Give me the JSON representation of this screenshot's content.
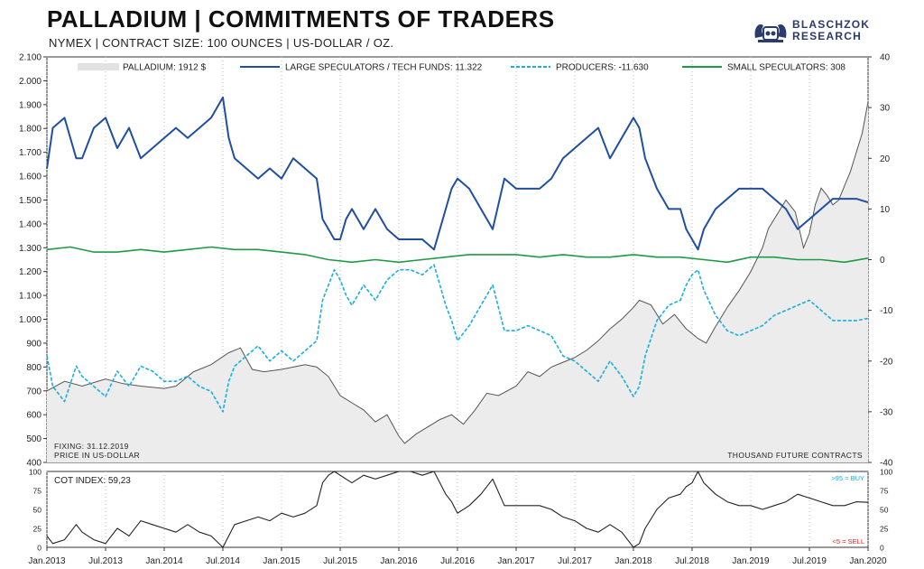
{
  "header": {
    "title": "PALLADIUM | COMMITMENTS OF TRADERS",
    "subtitle": "NYMEX | CONTRACT SIZE: 100 OUNCES | US-DOLLAR / OZ.",
    "logo_line1": "BLASCHZOK",
    "logo_line2": "RESEARCH",
    "logo_color": "#2a3b6e"
  },
  "chart_data": [
    {
      "type": "line",
      "left_axis": {
        "ylim": [
          400,
          2100
        ],
        "ticks": [
          400,
          500,
          600,
          700,
          800,
          900,
          1000,
          1100,
          1200,
          1300,
          1400,
          1500,
          1600,
          1700,
          1800,
          1900,
          2000,
          2100
        ],
        "tick_labels": [
          "400",
          "500",
          "600",
          "700",
          "800",
          "900",
          "1.000",
          "1.100",
          "1.200",
          "1.300",
          "1.400",
          "1.500",
          "1.600",
          "1.700",
          "1.800",
          "1.900",
          "2.000",
          "2.100"
        ]
      },
      "right_axis": {
        "ylim": [
          -40,
          40
        ],
        "ticks": [
          -40,
          -30,
          -20,
          -10,
          0,
          10,
          20,
          30,
          40
        ],
        "tick_labels": [
          "-40",
          "-30",
          "-20",
          "-10",
          "0",
          "10",
          "20",
          "30",
          "40"
        ]
      },
      "x_axis": {
        "ticks": [
          2013.0,
          2013.5,
          2014.0,
          2014.5,
          2015.0,
          2015.5,
          2016.0,
          2016.5,
          2017.0,
          2017.5,
          2018.0,
          2018.5,
          2019.0,
          2019.5,
          2020.0
        ],
        "tick_labels": [
          "Jan.2013",
          "Jul.2013",
          "Jan.2014",
          "Jul.2014",
          "Jan.2015",
          "Jul.2015",
          "Jan.2016",
          "Jul.2016",
          "Jan.2017",
          "Jul.2017",
          "Jan.2018",
          "Jul.2018",
          "Jan.2019",
          "Jul.2019",
          "Jan.2020"
        ]
      },
      "annotations": {
        "fixing": "FIXING: 31.12.2019",
        "price_note": "PRICE IN US-DOLLAR",
        "units": "THOUSAND FUTURE CONTRACTS"
      },
      "legend": [
        "PALLADIUM: 1912 $",
        "LARGE SPECULATORS / TECH FUNDS: 11.322",
        "PRODUCERS: -11.630",
        "SMALL SPECULATORS: 308"
      ],
      "legend_placement": "top",
      "series": [
        {
          "name": "PALLADIUM: 1912 $",
          "axis": "left",
          "style": "area",
          "color": "#555555",
          "fill": "#ececec",
          "x": [
            2013.0,
            2013.15,
            2013.3,
            2013.5,
            2013.65,
            2013.8,
            2014.0,
            2014.1,
            2014.25,
            2014.4,
            2014.55,
            2014.65,
            2014.75,
            2014.85,
            2015.0,
            2015.1,
            2015.2,
            2015.3,
            2015.4,
            2015.5,
            2015.6,
            2015.7,
            2015.8,
            2015.9,
            2016.0,
            2016.05,
            2016.15,
            2016.25,
            2016.35,
            2016.45,
            2016.55,
            2016.65,
            2016.75,
            2016.85,
            2017.0,
            2017.1,
            2017.2,
            2017.3,
            2017.4,
            2017.5,
            2017.6,
            2017.7,
            2017.8,
            2017.9,
            2018.0,
            2018.05,
            2018.15,
            2018.25,
            2018.35,
            2018.45,
            2018.55,
            2018.62,
            2018.7,
            2018.8,
            2018.9,
            2019.0,
            2019.05,
            2019.1,
            2019.15,
            2019.2,
            2019.3,
            2019.38,
            2019.45,
            2019.5,
            2019.55,
            2019.6,
            2019.65,
            2019.7,
            2019.75,
            2019.8,
            2019.85,
            2019.9,
            2019.95,
            2020.0
          ],
          "values": [
            700,
            740,
            720,
            750,
            730,
            720,
            710,
            720,
            780,
            810,
            860,
            880,
            790,
            780,
            790,
            800,
            810,
            800,
            760,
            680,
            650,
            620,
            570,
            600,
            510,
            480,
            520,
            550,
            580,
            600,
            560,
            620,
            690,
            680,
            720,
            780,
            760,
            800,
            820,
            840,
            870,
            910,
            960,
            1000,
            1050,
            1080,
            1060,
            980,
            1020,
            960,
            920,
            900,
            970,
            1050,
            1120,
            1200,
            1250,
            1300,
            1380,
            1420,
            1500,
            1450,
            1300,
            1360,
            1480,
            1550,
            1520,
            1480,
            1500,
            1560,
            1620,
            1700,
            1780,
            1912
          ]
        },
        {
          "name": "LARGE SPECULATORS / TECH FUNDS: 11.322",
          "axis": "right",
          "style": "line",
          "color": "#1f4ea3",
          "x": [
            2013.0,
            2013.05,
            2013.15,
            2013.25,
            2013.3,
            2013.4,
            2013.5,
            2013.6,
            2013.7,
            2013.8,
            2013.9,
            2014.0,
            2014.1,
            2014.2,
            2014.3,
            2014.4,
            2014.5,
            2014.55,
            2014.6,
            2014.7,
            2014.8,
            2014.9,
            2015.0,
            2015.1,
            2015.2,
            2015.3,
            2015.35,
            2015.4,
            2015.45,
            2015.5,
            2015.55,
            2015.6,
            2015.7,
            2015.8,
            2015.9,
            2016.0,
            2016.1,
            2016.2,
            2016.3,
            2016.4,
            2016.45,
            2016.5,
            2016.6,
            2016.7,
            2016.8,
            2016.9,
            2017.0,
            2017.1,
            2017.2,
            2017.3,
            2017.4,
            2017.5,
            2017.6,
            2017.7,
            2017.8,
            2017.9,
            2017.95,
            2018.0,
            2018.05,
            2018.1,
            2018.2,
            2018.3,
            2018.4,
            2018.45,
            2018.5,
            2018.55,
            2018.6,
            2018.7,
            2018.8,
            2018.9,
            2019.0,
            2019.1,
            2019.2,
            2019.3,
            2019.4,
            2019.5,
            2019.6,
            2019.7,
            2019.8,
            2019.9,
            2020.0
          ],
          "values": [
            18,
            26,
            28,
            20,
            20,
            26,
            28,
            22,
            26,
            20,
            22,
            24,
            26,
            24,
            26,
            28,
            32,
            24,
            20,
            18,
            16,
            18,
            16,
            20,
            18,
            16,
            8,
            6,
            4,
            4,
            8,
            10,
            6,
            10,
            6,
            4,
            4,
            4,
            2,
            10,
            14,
            16,
            14,
            10,
            6,
            16,
            14,
            14,
            14,
            16,
            20,
            22,
            24,
            26,
            20,
            24,
            26,
            28,
            26,
            20,
            14,
            10,
            10,
            6,
            4,
            2,
            6,
            10,
            12,
            14,
            14,
            14,
            12,
            10,
            6,
            8,
            10,
            12,
            12,
            12,
            11.3
          ]
        },
        {
          "name": "PRODUCERS: -11.630",
          "axis": "right",
          "style": "dashed",
          "color": "#1aaee0",
          "x": [
            2013.0,
            2013.05,
            2013.15,
            2013.25,
            2013.3,
            2013.4,
            2013.5,
            2013.6,
            2013.7,
            2013.8,
            2013.9,
            2014.0,
            2014.1,
            2014.2,
            2014.3,
            2014.4,
            2014.5,
            2014.55,
            2014.6,
            2014.7,
            2014.8,
            2014.9,
            2015.0,
            2015.1,
            2015.2,
            2015.3,
            2015.35,
            2015.4,
            2015.45,
            2015.5,
            2015.55,
            2015.6,
            2015.7,
            2015.8,
            2015.9,
            2016.0,
            2016.1,
            2016.2,
            2016.3,
            2016.4,
            2016.45,
            2016.5,
            2016.6,
            2016.7,
            2016.8,
            2016.9,
            2017.0,
            2017.1,
            2017.2,
            2017.3,
            2017.4,
            2017.5,
            2017.6,
            2017.7,
            2017.8,
            2017.9,
            2017.95,
            2018.0,
            2018.05,
            2018.1,
            2018.2,
            2018.3,
            2018.4,
            2018.45,
            2018.5,
            2018.55,
            2018.6,
            2018.7,
            2018.8,
            2018.9,
            2019.0,
            2019.1,
            2019.2,
            2019.3,
            2019.4,
            2019.5,
            2019.6,
            2019.7,
            2019.8,
            2019.9,
            2020.0
          ],
          "values": [
            -19,
            -25,
            -28,
            -21,
            -23,
            -25,
            -27,
            -22,
            -25,
            -21,
            -22,
            -24,
            -24,
            -23,
            -25,
            -26,
            -30,
            -24,
            -21,
            -19,
            -17,
            -20,
            -18,
            -20,
            -18,
            -16,
            -8,
            -5,
            -2,
            -4,
            -7,
            -9,
            -5,
            -8,
            -4,
            -2,
            -2,
            -3,
            -1,
            -9,
            -12,
            -16,
            -13,
            -9,
            -5,
            -14,
            -14,
            -13,
            -14,
            -15,
            -19,
            -20,
            -22,
            -24,
            -20,
            -23,
            -25,
            -27,
            -25,
            -19,
            -12,
            -9,
            -8,
            -5,
            -3,
            -2,
            -6,
            -11,
            -14,
            -15,
            -14,
            -13,
            -11,
            -10,
            -9,
            -8,
            -10,
            -12,
            -12,
            -12,
            -11.6
          ]
        },
        {
          "name": "SMALL SPECULATORS: 308",
          "axis": "right",
          "style": "line",
          "color": "#1f9a44",
          "x": [
            2013.0,
            2013.2,
            2013.4,
            2013.6,
            2013.8,
            2014.0,
            2014.2,
            2014.4,
            2014.6,
            2014.8,
            2015.0,
            2015.2,
            2015.4,
            2015.6,
            2015.8,
            2016.0,
            2016.2,
            2016.4,
            2016.6,
            2016.8,
            2017.0,
            2017.2,
            2017.4,
            2017.6,
            2017.8,
            2018.0,
            2018.2,
            2018.4,
            2018.6,
            2018.8,
            2019.0,
            2019.2,
            2019.4,
            2019.6,
            2019.8,
            2020.0
          ],
          "values": [
            2,
            2.5,
            1.5,
            1.5,
            2,
            1.5,
            2,
            2.5,
            2,
            2,
            1.5,
            1,
            0,
            -0.5,
            0,
            -0.5,
            0,
            0.5,
            1,
            1,
            1,
            0.5,
            1,
            0.5,
            0.5,
            1,
            0.5,
            0.5,
            0,
            -0.5,
            0.5,
            0.5,
            0,
            0,
            -0.5,
            0.3
          ]
        }
      ]
    },
    {
      "type": "line",
      "title": "COT INDEX: 59,23",
      "ylim": [
        0,
        100
      ],
      "ticks": [
        0,
        25,
        50,
        75,
        100
      ],
      "tick_labels": [
        "0",
        "25",
        "50",
        "75",
        "100"
      ],
      "buy_label": ">95 = BUY",
      "sell_label": "<5 = SELL",
      "buy_color": "#1aaee0",
      "sell_color": "#e02020",
      "series": [
        {
          "color": "#222222",
          "x": [
            2013.0,
            2013.05,
            2013.15,
            2013.25,
            2013.3,
            2013.4,
            2013.5,
            2013.6,
            2013.7,
            2013.8,
            2013.9,
            2014.0,
            2014.1,
            2014.2,
            2014.3,
            2014.4,
            2014.5,
            2014.55,
            2014.6,
            2014.7,
            2014.8,
            2014.9,
            2015.0,
            2015.1,
            2015.2,
            2015.3,
            2015.35,
            2015.4,
            2015.45,
            2015.5,
            2015.55,
            2015.6,
            2015.7,
            2015.8,
            2015.9,
            2016.0,
            2016.1,
            2016.2,
            2016.3,
            2016.4,
            2016.45,
            2016.5,
            2016.6,
            2016.7,
            2016.8,
            2016.9,
            2017.0,
            2017.1,
            2017.2,
            2017.3,
            2017.4,
            2017.5,
            2017.6,
            2017.7,
            2017.8,
            2017.9,
            2017.95,
            2018.0,
            2018.05,
            2018.1,
            2018.2,
            2018.3,
            2018.4,
            2018.45,
            2018.5,
            2018.55,
            2018.6,
            2018.7,
            2018.8,
            2018.9,
            2019.0,
            2019.1,
            2019.2,
            2019.3,
            2019.4,
            2019.5,
            2019.6,
            2019.7,
            2019.8,
            2019.9,
            2020.0
          ],
          "values": [
            15,
            5,
            10,
            30,
            20,
            10,
            5,
            25,
            15,
            35,
            30,
            25,
            20,
            30,
            20,
            15,
            0,
            15,
            30,
            35,
            40,
            35,
            45,
            40,
            45,
            55,
            85,
            95,
            100,
            95,
            90,
            85,
            95,
            90,
            95,
            100,
            100,
            95,
            100,
            70,
            60,
            45,
            55,
            70,
            90,
            55,
            55,
            55,
            55,
            50,
            40,
            35,
            25,
            20,
            30,
            20,
            10,
            0,
            5,
            25,
            50,
            65,
            70,
            80,
            85,
            100,
            85,
            70,
            60,
            55,
            55,
            50,
            55,
            60,
            70,
            65,
            60,
            55,
            55,
            60,
            59.23
          ]
        }
      ]
    }
  ]
}
